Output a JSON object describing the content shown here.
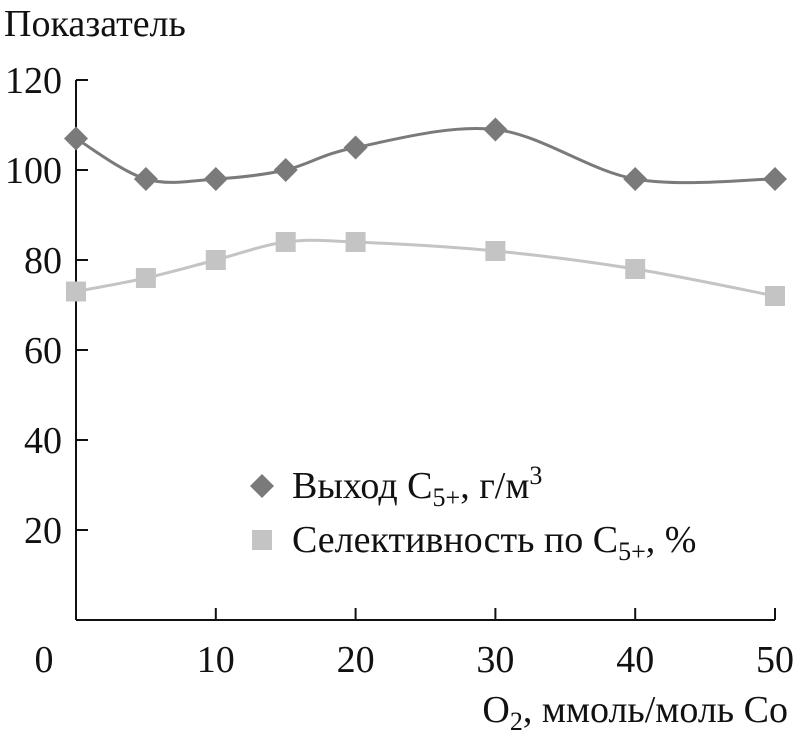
{
  "chart_data": {
    "type": "line",
    "ylabel": "Показатель",
    "xlabel": "O₂, ммоль/моль Co",
    "xlabel_parts": {
      "main": "O",
      "sub": "2",
      "rest": ", ммоль/моль Co"
    },
    "xlim": [
      0,
      50
    ],
    "ylim": [
      0,
      120
    ],
    "x_ticks": [
      0,
      10,
      20,
      30,
      40,
      50
    ],
    "y_ticks": [
      20,
      40,
      60,
      80,
      100,
      120
    ],
    "grid": false,
    "legend_position": "bottom-right",
    "series": [
      {
        "name": "Выход C5+, г/м3",
        "label_parts": {
          "a": "Выход C",
          "sub": "5+",
          "b": ", г/м",
          "sup": "3"
        },
        "marker": "diamond",
        "color": "#7a7a7a",
        "x": [
          0,
          5,
          10,
          15,
          20,
          30,
          40,
          50
        ],
        "y": [
          107,
          98,
          98,
          100,
          105,
          109,
          98,
          98
        ]
      },
      {
        "name": "Селективность по C5+, %",
        "label_parts": {
          "a": "Селективность по C",
          "sub": "5+",
          "b": ", %"
        },
        "marker": "square",
        "color": "#c4c4c4",
        "x": [
          0,
          5,
          10,
          15,
          20,
          30,
          40,
          50
        ],
        "y": [
          73,
          76,
          80,
          84,
          84,
          82,
          78,
          72
        ]
      }
    ]
  }
}
